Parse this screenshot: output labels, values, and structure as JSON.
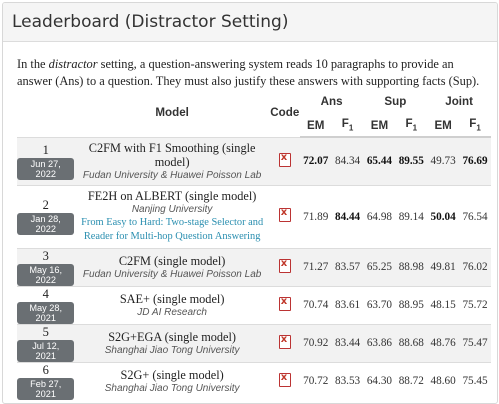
{
  "header": {
    "title": "Leaderboard (Distractor Setting)"
  },
  "intro": {
    "before": "In the ",
    "em": "distractor",
    "after": " setting, a question-answering system reads 10 paragraphs to provide an answer (Ans) to a question. They must also justify these answers with supporting facts (Sup)."
  },
  "table": {
    "col_model": "Model",
    "col_code": "Code",
    "group_ans": "Ans",
    "group_sup": "Sup",
    "group_joint": "Joint",
    "em": "EM",
    "f1": "F",
    "f1_sub": "1",
    "rows": [
      {
        "rank": "1",
        "date": "Jun 27, 2022",
        "model": "C2FM with F1 Smoothing (single model)",
        "institution": "Fudan University & Huawei Poisson Lab",
        "paper": "",
        "ans_em": "72.07",
        "ans_f1": "84.34",
        "sup_em": "65.44",
        "sup_f1": "89.55",
        "joint_em": "49.73",
        "joint_f1": "76.69"
      },
      {
        "rank": "2",
        "date": "Jan 28, 2022",
        "model": "FE2H on ALBERT (single model)",
        "institution": "Nanjing University",
        "paper": "From Easy to Hard: Two-stage Selector and Reader for Multi-hop Question Answering",
        "ans_em": "71.89",
        "ans_f1": "84.44",
        "sup_em": "64.98",
        "sup_f1": "89.14",
        "joint_em": "50.04",
        "joint_f1": "76.54"
      },
      {
        "rank": "3",
        "date": "May 16, 2022",
        "model": "C2FM (single model)",
        "institution": "Fudan University & Huawei Poisson Lab",
        "paper": "",
        "ans_em": "71.27",
        "ans_f1": "83.57",
        "sup_em": "65.25",
        "sup_f1": "88.98",
        "joint_em": "49.81",
        "joint_f1": "76.02"
      },
      {
        "rank": "4",
        "date": "May 28, 2021",
        "model": "SAE+ (single model)",
        "institution": "JD AI Research",
        "paper": "",
        "ans_em": "70.74",
        "ans_f1": "83.61",
        "sup_em": "63.70",
        "sup_f1": "88.95",
        "joint_em": "48.15",
        "joint_f1": "75.72"
      },
      {
        "rank": "5",
        "date": "Jul 12, 2021",
        "model": "S2G+EGA (single model)",
        "institution": "Shanghai Jiao Tong University",
        "paper": "",
        "ans_em": "70.92",
        "ans_f1": "83.44",
        "sup_em": "63.86",
        "sup_f1": "88.68",
        "joint_em": "48.76",
        "joint_f1": "75.47"
      },
      {
        "rank": "6",
        "date": "Feb 27, 2021",
        "model": "S2G+ (single model)",
        "institution": "Shanghai Jiao Tong University",
        "paper": "",
        "ans_em": "70.72",
        "ans_f1": "83.53",
        "sup_em": "64.30",
        "sup_f1": "88.72",
        "joint_em": "48.60",
        "joint_f1": "75.45"
      }
    ]
  }
}
